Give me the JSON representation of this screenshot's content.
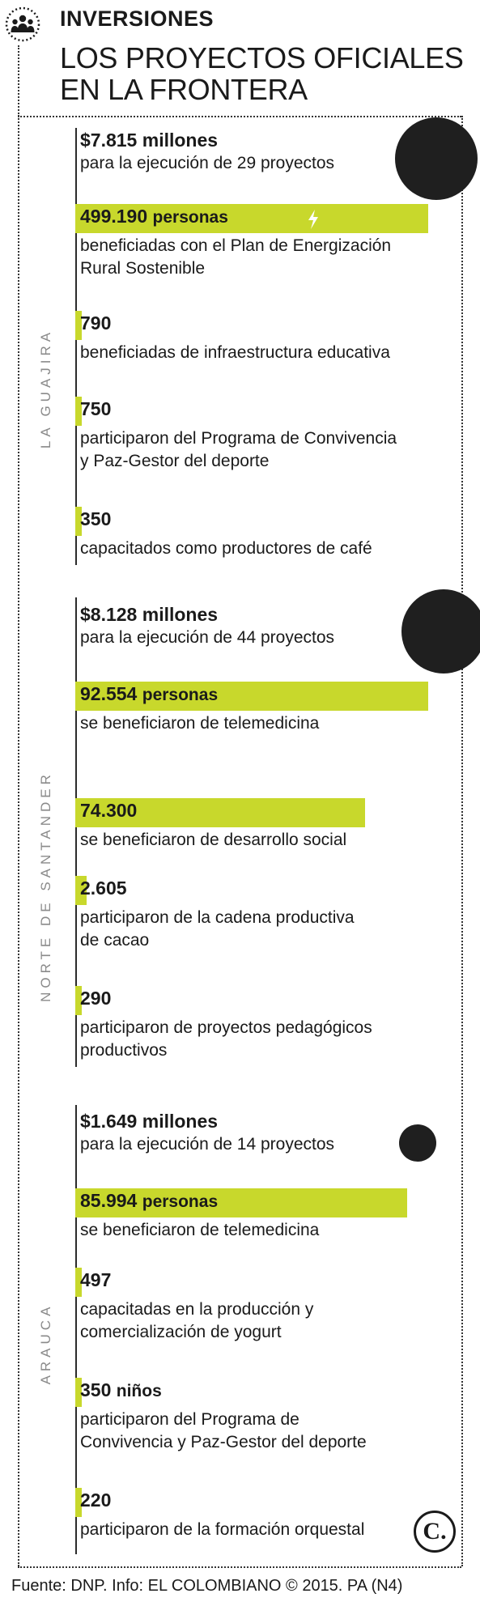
{
  "header": {
    "kicker": "INVERSIONES",
    "title_line1": "LOS PROYECTOS OFICIALES",
    "title_line2": "EN LA FRONTERA",
    "icon": "people-group-icon"
  },
  "colors": {
    "accent": "#c8d82c",
    "bubble": "#1f1f1f",
    "text": "#1a1a1a",
    "region_label": "#8a8a8a"
  },
  "regions": [
    {
      "name": "LA GUAJIRA",
      "investment": {
        "amount": "$7.815",
        "unit": "millones",
        "desc": "para la ejecución de 29 proyectos",
        "value_millions": 7815
      },
      "stats": [
        {
          "value": "499.190",
          "unit": "personas",
          "desc": [
            "beneficiadas con el Plan de Energización",
            "Rural Sostenible"
          ]
        },
        {
          "value": "790",
          "desc": [
            "beneficiadas de infraestructura educativa"
          ]
        },
        {
          "value": "750",
          "desc": [
            "participaron del Programa de Convivencia",
            "y Paz-Gestor del deporte"
          ]
        },
        {
          "value": "350",
          "desc": [
            "capacitados como productores de café"
          ]
        }
      ]
    },
    {
      "name": "NORTE DE SANTANDER",
      "investment": {
        "amount": "$8.128",
        "unit": "millones",
        "desc": "para la ejecución de 44 proyectos",
        "value_millions": 8128
      },
      "stats": [
        {
          "value": "92.554",
          "unit": "personas",
          "desc": [
            "se beneficiaron de telemedicina"
          ]
        },
        {
          "value": "74.300",
          "desc": [
            "se beneficiaron de desarrollo social"
          ]
        },
        {
          "value": "2.605",
          "desc": [
            "participaron de la cadena productiva",
            "de cacao"
          ]
        },
        {
          "value": "290",
          "desc": [
            "participaron de proyectos pedagógicos",
            "productivos"
          ]
        }
      ]
    },
    {
      "name": "ARAUCA",
      "investment": {
        "amount": "$1.649",
        "unit": "millones",
        "desc": "para la ejecución de 14 proyectos",
        "value_millions": 1649
      },
      "stats": [
        {
          "value": "85.994",
          "unit": "personas",
          "desc": [
            "se beneficiaron de telemedicina"
          ]
        },
        {
          "value": "497",
          "desc": [
            "capacitadas en la producción y",
            "comercialización de yogurt"
          ]
        },
        {
          "value": "350",
          "unit": "niños",
          "desc": [
            "participaron del Programa de",
            "Convivencia y Paz-Gestor del deporte"
          ]
        },
        {
          "value": "220",
          "desc": [
            "participaron de la formación orquestal"
          ]
        }
      ]
    }
  ],
  "chart_data": {
    "type": "bar",
    "title": "LOS PROYECTOS OFICIALES EN LA FRONTERA",
    "investments_millions": [
      {
        "region": "LA GUAJIRA",
        "value": 7815,
        "projects": 29
      },
      {
        "region": "NORTE DE SANTANDER",
        "value": 8128,
        "projects": 44
      },
      {
        "region": "ARAUCA",
        "value": 1649,
        "projects": 14
      }
    ],
    "beneficiaries": [
      {
        "region": "LA GUAJIRA",
        "value": 499190
      },
      {
        "region": "LA GUAJIRA",
        "value": 790
      },
      {
        "region": "LA GUAJIRA",
        "value": 750
      },
      {
        "region": "LA GUAJIRA",
        "value": 350
      },
      {
        "region": "NORTE DE SANTANDER",
        "value": 92554
      },
      {
        "region": "NORTE DE SANTANDER",
        "value": 74300
      },
      {
        "region": "NORTE DE SANTANDER",
        "value": 2605
      },
      {
        "region": "NORTE DE SANTANDER",
        "value": 290
      },
      {
        "region": "ARAUCA",
        "value": 85994
      },
      {
        "region": "ARAUCA",
        "value": 497
      },
      {
        "region": "ARAUCA",
        "value": 350
      },
      {
        "region": "ARAUCA",
        "value": 220
      }
    ]
  },
  "logo": {
    "letter": "C."
  },
  "footer": "Fuente: DNP. Info: EL COLOMBIANO © 2015. PA (N4)"
}
